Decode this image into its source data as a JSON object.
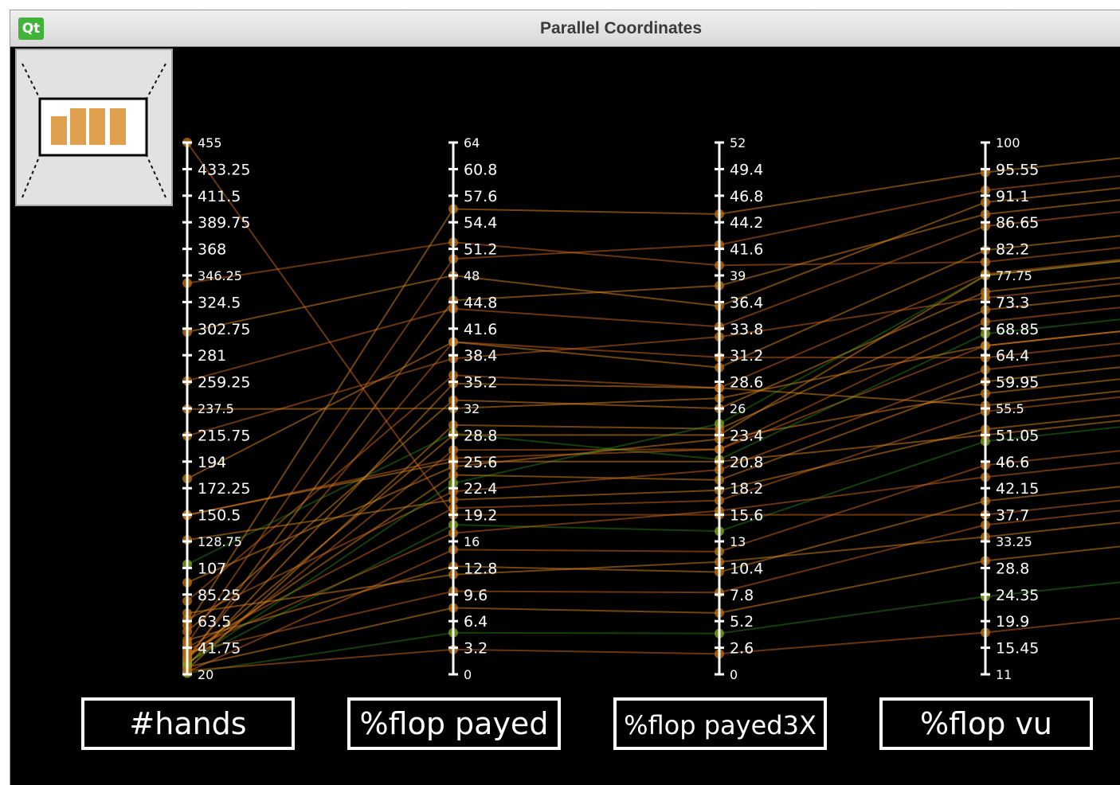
{
  "window": {
    "title": "Parallel Coordinates",
    "logo": "Qt"
  },
  "colors": {
    "background": "#000000",
    "axis": "#ffffff",
    "line_primary": "#d2691e",
    "line_secondary": "#e08a20",
    "highlight": "#3ab51c"
  },
  "chart_data": {
    "type": "parallel-coordinates",
    "title": "",
    "axes": [
      {
        "name": "#hands",
        "min": 20,
        "max": 455,
        "ticks": [
          "455",
          "433.25",
          "411.5",
          "389.75",
          "368",
          "346.25",
          "324.5",
          "302.75",
          "281",
          "259.25",
          "237.5",
          "215.75",
          "194",
          "172.25",
          "150.5",
          "128.75",
          "107",
          "85.25",
          "63.5",
          "41.75",
          "20"
        ]
      },
      {
        "name": "%flop payed",
        "min": 0,
        "max": 64,
        "ticks": [
          "64",
          "60.8",
          "57.6",
          "54.4",
          "51.2",
          "48",
          "44.8",
          "41.6",
          "38.4",
          "35.2",
          "32",
          "28.8",
          "25.6",
          "22.4",
          "19.2",
          "16",
          "12.8",
          "9.6",
          "6.4",
          "3.2",
          "0"
        ]
      },
      {
        "name": "%flop payed3X",
        "min": 0,
        "max": 52,
        "ticks": [
          "52",
          "49.4",
          "46.8",
          "44.2",
          "41.6",
          "39",
          "36.4",
          "33.8",
          "31.2",
          "28.6",
          "26",
          "23.4",
          "20.8",
          "18.2",
          "15.6",
          "13",
          "10.4",
          "7.8",
          "5.2",
          "2.6",
          "0"
        ]
      },
      {
        "name": "%flop vu",
        "min": 11,
        "max": 100,
        "ticks": [
          "100",
          "95.55",
          "91.1",
          "86.65",
          "82.2",
          "77.75",
          "73.3",
          "68.85",
          "64.4",
          "59.95",
          "55.5",
          "51.05",
          "46.6",
          "42.15",
          "37.7",
          "33.25",
          "28.8",
          "24.35",
          "19.9",
          "15.45",
          "11"
        ]
      }
    ],
    "records": [
      [
        24,
        30.0,
        24.0,
        72.0
      ],
      [
        28,
        27.0,
        22.0,
        66.0
      ],
      [
        35,
        24.0,
        19.0,
        60.0
      ],
      [
        42,
        20.0,
        17.0,
        55.0
      ],
      [
        30,
        18.0,
        14.0,
        50.0
      ],
      [
        22,
        15.0,
        12.0,
        46.0
      ],
      [
        55,
        33.0,
        26.0,
        75.0
      ],
      [
        65,
        22.0,
        20.0,
        62.0
      ],
      [
        48,
        13.0,
        10.0,
        40.0
      ],
      [
        38,
        10.0,
        8.0,
        36.0
      ],
      [
        26,
        8.0,
        6.0,
        30.0
      ],
      [
        80,
        36.0,
        28.0,
        78.0
      ],
      [
        95,
        25.0,
        23.0,
        58.0
      ],
      [
        110,
        29.0,
        21.0,
        68.0
      ],
      [
        130,
        21.0,
        18.0,
        52.0
      ],
      [
        150,
        26.0,
        22.0,
        70.0
      ],
      [
        180,
        40.0,
        30.0,
        82.0
      ],
      [
        215,
        38.0,
        33.0,
        74.0
      ],
      [
        237,
        32.0,
        27.0,
        66.0
      ],
      [
        260,
        44.0,
        34.0,
        86.0
      ],
      [
        300,
        48.0,
        36.0,
        90.0
      ],
      [
        340,
        52.0,
        40.0,
        80.0
      ],
      [
        21,
        5.0,
        4.0,
        24.0
      ],
      [
        23,
        3.0,
        2.0,
        18.0
      ],
      [
        32,
        45.0,
        38.0,
        88.0
      ],
      [
        45,
        50.0,
        42.0,
        92.0
      ],
      [
        60,
        56.0,
        45.0,
        95.0
      ],
      [
        34,
        40.0,
        31.0,
        64.0
      ],
      [
        27,
        35.0,
        28.0,
        56.0
      ],
      [
        40,
        17.0,
        16.0,
        44.0
      ],
      [
        70,
        12.0,
        11.0,
        34.0
      ],
      [
        29,
        23.0,
        24.5,
        77.75
      ],
      [
        33,
        28.8,
        23.4,
        77.75
      ],
      [
        455,
        19.2,
        15.6,
        37.7
      ],
      [
        150.5,
        25.6,
        20.8,
        51.05
      ]
    ]
  }
}
